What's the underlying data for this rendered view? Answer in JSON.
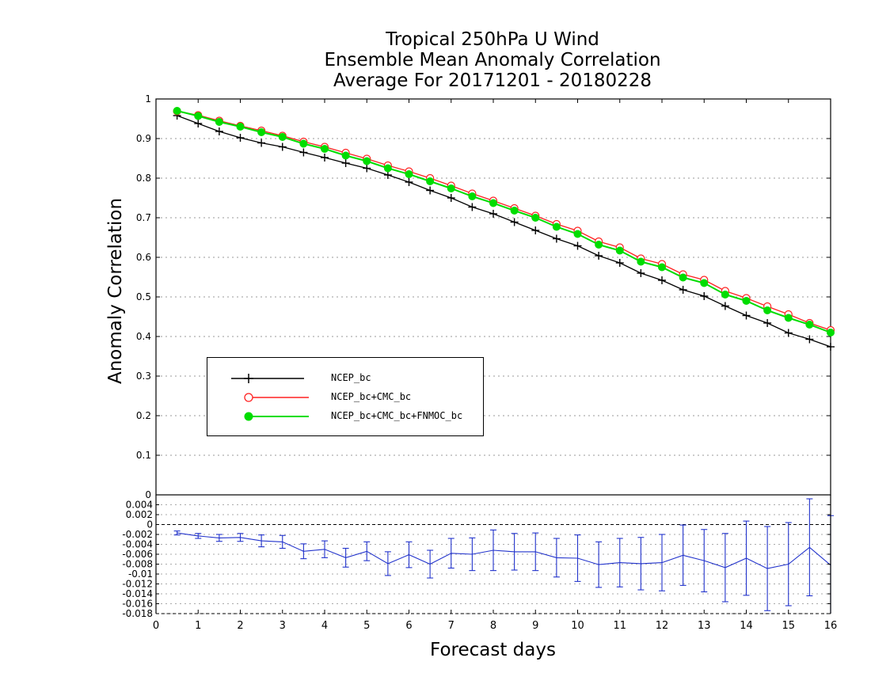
{
  "title": {
    "line1": "Tropical 250hPa U Wind",
    "line2": "Ensemble Mean Anomaly Correlation",
    "line3": "Average For 20171201 - 20180228"
  },
  "axes": {
    "ylabel": "Anomaly Correlation",
    "xlabel": "Forecast days"
  },
  "colors": {
    "ncep": "#000000",
    "ncep_cmc": "#ff2020",
    "ncep_cmc_fnmoc": "#00dd00",
    "diff": "#2233cc"
  },
  "legend": {
    "items": [
      {
        "label": "NCEP_bc",
        "marker": "plus"
      },
      {
        "label": "NCEP_bc+CMC_bc",
        "marker": "open-circle"
      },
      {
        "label": "NCEP_bc+CMC_bc+FNMOC_bc",
        "marker": "filled-circle"
      }
    ]
  },
  "chart_data": [
    {
      "type": "line",
      "panel": "top",
      "title": "Tropical 250hPa U Wind / Ensemble Mean Anomaly Correlation / Average For 20171201 - 20180228",
      "xlabel": "Forecast days",
      "ylabel": "Anomaly Correlation",
      "xlim": [
        0,
        16
      ],
      "ylim": [
        0,
        1
      ],
      "yticks": [
        0,
        0.1,
        0.2,
        0.3,
        0.4,
        0.5,
        0.6,
        0.7,
        0.8,
        0.9,
        1
      ],
      "grid": true,
      "legend_position": "lower-left",
      "x": [
        0.5,
        1,
        1.5,
        2,
        2.5,
        3,
        3.5,
        4,
        4.5,
        5,
        5.5,
        6,
        6.5,
        7,
        7.5,
        8,
        8.5,
        9,
        9.5,
        10,
        10.5,
        11,
        11.5,
        12,
        12.5,
        13,
        13.5,
        14,
        14.5,
        15,
        15.5,
        16
      ],
      "series": [
        {
          "name": "NCEP_bc",
          "values": [
            0.958,
            0.938,
            0.918,
            0.902,
            0.889,
            0.879,
            0.865,
            0.852,
            0.838,
            0.825,
            0.808,
            0.79,
            0.769,
            0.75,
            0.727,
            0.71,
            0.689,
            0.668,
            0.647,
            0.629,
            0.604,
            0.586,
            0.56,
            0.542,
            0.518,
            0.502,
            0.477,
            0.453,
            0.434,
            0.409,
            0.393,
            0.374
          ]
        },
        {
          "name": "NCEP_bc+CMC_bc",
          "values": [
            0.969,
            0.959,
            0.945,
            0.932,
            0.92,
            0.907,
            0.892,
            0.879,
            0.864,
            0.849,
            0.832,
            0.817,
            0.8,
            0.781,
            0.761,
            0.743,
            0.724,
            0.705,
            0.684,
            0.667,
            0.64,
            0.625,
            0.597,
            0.583,
            0.557,
            0.543,
            0.515,
            0.497,
            0.476,
            0.456,
            0.434,
            0.416
          ]
        },
        {
          "name": "NCEP_bc+CMC_bc+FNMOC_bc",
          "values": [
            0.97,
            0.957,
            0.942,
            0.93,
            0.916,
            0.904,
            0.887,
            0.874,
            0.857,
            0.843,
            0.825,
            0.81,
            0.792,
            0.774,
            0.754,
            0.737,
            0.718,
            0.7,
            0.677,
            0.659,
            0.632,
            0.617,
            0.589,
            0.575,
            0.549,
            0.535,
            0.506,
            0.49,
            0.466,
            0.447,
            0.43,
            0.41
          ]
        }
      ]
    },
    {
      "type": "line",
      "panel": "bottom",
      "description": "difference with error bars",
      "xlim": [
        0,
        16
      ],
      "ylim": [
        -0.018,
        0.006
      ],
      "yticks": [
        -0.018,
        -0.016,
        -0.014,
        -0.012,
        -0.01,
        -0.008,
        -0.006,
        -0.004,
        -0.002,
        0,
        0.002,
        0.004
      ],
      "ytick_labels": [
        "-0.018",
        "-0.016",
        "-0.014",
        "-0.012",
        "-0.01",
        "-0.008",
        "-0.006",
        "-0.004",
        "-0.002",
        "0",
        "0.002",
        "0.004"
      ],
      "xticks": [
        0,
        1,
        2,
        3,
        4,
        5,
        6,
        7,
        8,
        9,
        10,
        11,
        12,
        13,
        14,
        15,
        16
      ],
      "grid": true,
      "x": [
        0.5,
        1,
        1.5,
        2,
        2.5,
        3,
        3.5,
        4,
        4.5,
        5,
        5.5,
        6,
        6.5,
        7,
        7.5,
        8,
        8.5,
        9,
        9.5,
        10,
        10.5,
        11,
        11.5,
        12,
        12.5,
        13,
        13.5,
        14,
        14.5,
        15,
        15.5,
        16
      ],
      "values": [
        -0.0017,
        -0.0023,
        -0.0027,
        -0.0026,
        -0.0033,
        -0.0035,
        -0.0054,
        -0.005,
        -0.0067,
        -0.0054,
        -0.0079,
        -0.0061,
        -0.008,
        -0.0058,
        -0.006,
        -0.0052,
        -0.0055,
        -0.0055,
        -0.0067,
        -0.0068,
        -0.0081,
        -0.0077,
        -0.0079,
        -0.0077,
        -0.0062,
        -0.0073,
        -0.0087,
        -0.0068,
        -0.0089,
        -0.008,
        -0.0046,
        -0.0082
      ],
      "errors": [
        0.0004,
        0.0005,
        0.0007,
        0.0008,
        0.0012,
        0.0013,
        0.0015,
        0.0017,
        0.0019,
        0.0019,
        0.0024,
        0.0026,
        0.0028,
        0.003,
        0.0033,
        0.0041,
        0.0037,
        0.0038,
        0.0039,
        0.0047,
        0.0046,
        0.0049,
        0.0053,
        0.0057,
        0.0061,
        0.0063,
        0.0069,
        0.0075,
        0.0085,
        0.0084,
        0.0098,
        0.01
      ]
    }
  ]
}
